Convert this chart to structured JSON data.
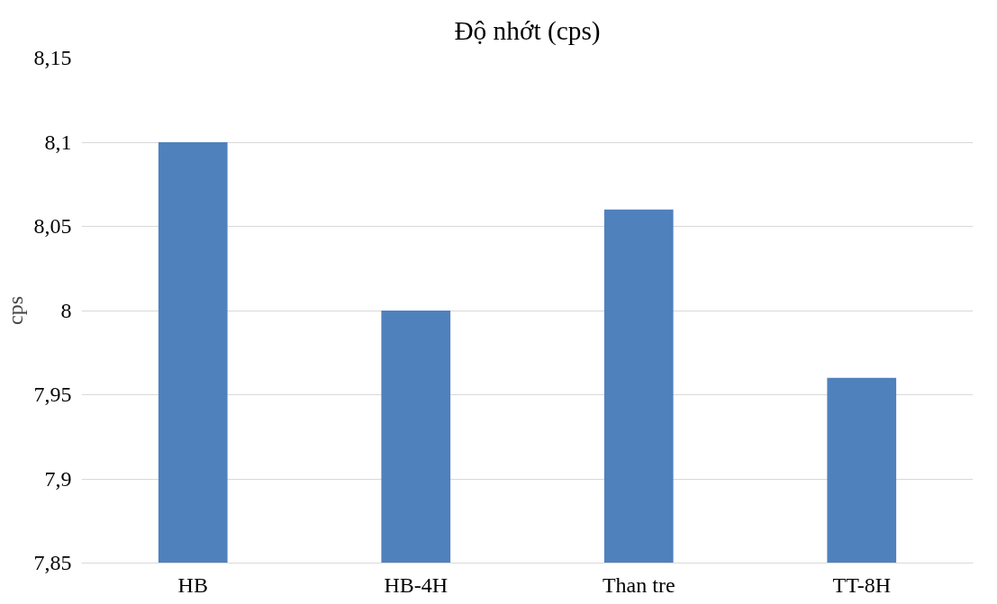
{
  "chart_data": {
    "type": "bar",
    "title": "Độ nhớt (cps)",
    "ylabel": "cps",
    "categories": [
      "HB",
      "HB-4H",
      "Than tre",
      "TT-8H"
    ],
    "values": [
      8.1,
      8.0,
      8.06,
      7.96
    ],
    "color": "#4f81bd",
    "ylim": [
      7.85,
      8.15
    ],
    "yticks": [
      {
        "value": 7.85,
        "label": "7,85"
      },
      {
        "value": 7.9,
        "label": "7,9"
      },
      {
        "value": 7.95,
        "label": "7,95"
      },
      {
        "value": 8.0,
        "label": "8"
      },
      {
        "value": 8.05,
        "label": "8,05"
      },
      {
        "value": 8.1,
        "label": "8,1"
      },
      {
        "value": 8.15,
        "label": "8,15"
      }
    ],
    "grid": "y"
  }
}
